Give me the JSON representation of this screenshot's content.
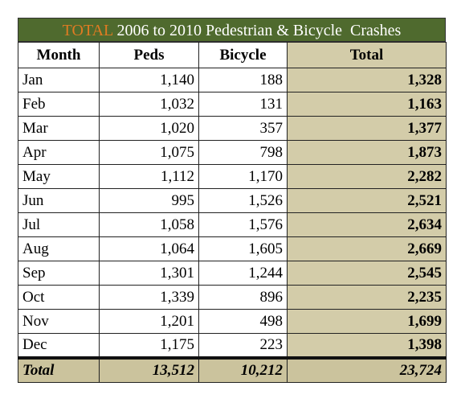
{
  "header": {
    "title_highlight": "TOTAL",
    "title_rest": "2006 to 2010 Pedestrian & Bicycle  Crashes"
  },
  "table": {
    "columns": [
      "Month",
      "Peds",
      "Bicycle",
      "Total"
    ],
    "rows": [
      [
        "Jan",
        "1,140",
        "188",
        "1,328"
      ],
      [
        "Feb",
        "1,032",
        "131",
        "1,163"
      ],
      [
        "Mar",
        "1,020",
        "357",
        "1,377"
      ],
      [
        "Apr",
        "1,075",
        "798",
        "1,873"
      ],
      [
        "May",
        "1,112",
        "1,170",
        "2,282"
      ],
      [
        "Jun",
        "995",
        "1,526",
        "2,521"
      ],
      [
        "Jul",
        "1,058",
        "1,576",
        "2,634"
      ],
      [
        "Aug",
        "1,064",
        "1,605",
        "2,669"
      ],
      [
        "Sep",
        "1,301",
        "1,244",
        "2,545"
      ],
      [
        "Oct",
        "1,339",
        "896",
        "2,235"
      ],
      [
        "Nov",
        "1,201",
        "498",
        "1,699"
      ],
      [
        "Dec",
        "1,175",
        "223",
        "1,398"
      ]
    ],
    "footer": [
      "Total",
      "13,512",
      "10,212",
      "23,724"
    ]
  }
}
